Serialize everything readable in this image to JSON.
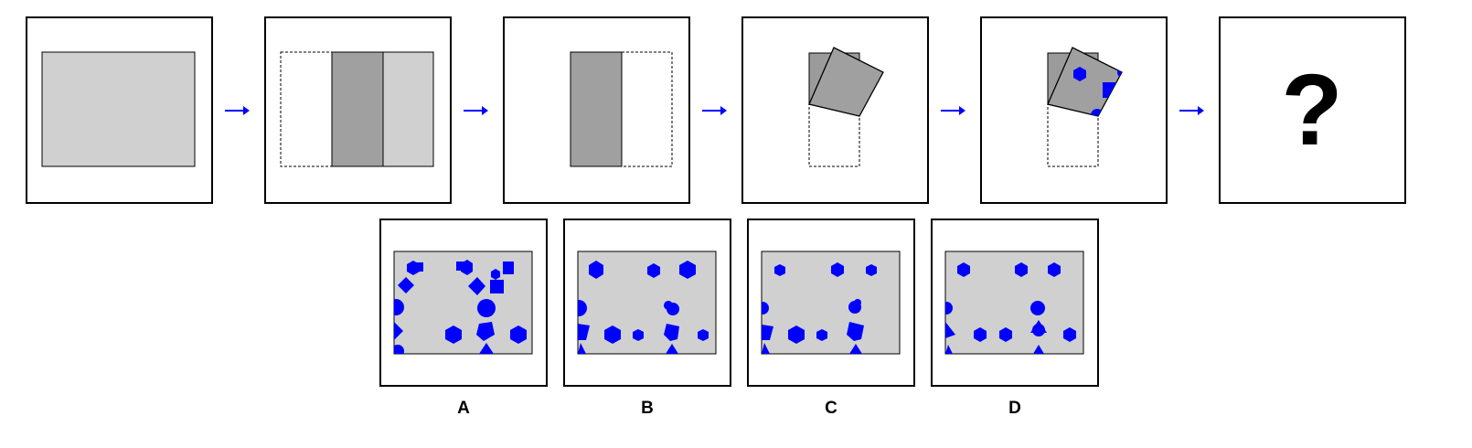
{
  "question_mark": "?",
  "options": [
    {
      "label": "A"
    },
    {
      "label": "B"
    },
    {
      "label": "C"
    },
    {
      "label": "D"
    }
  ],
  "colors": {
    "paper_light": "#d0d0d0",
    "paper_dark": "#a0a0a0",
    "paper_fold": "#9b9b9b",
    "punch": "#0000ff",
    "arrow": "#0000ff",
    "border": "#000000"
  },
  "icons": {
    "arrow": "arrow-right-icon",
    "holes": [
      "hexagon",
      "square",
      "circle",
      "diamond",
      "pentagon",
      "triangle"
    ]
  }
}
